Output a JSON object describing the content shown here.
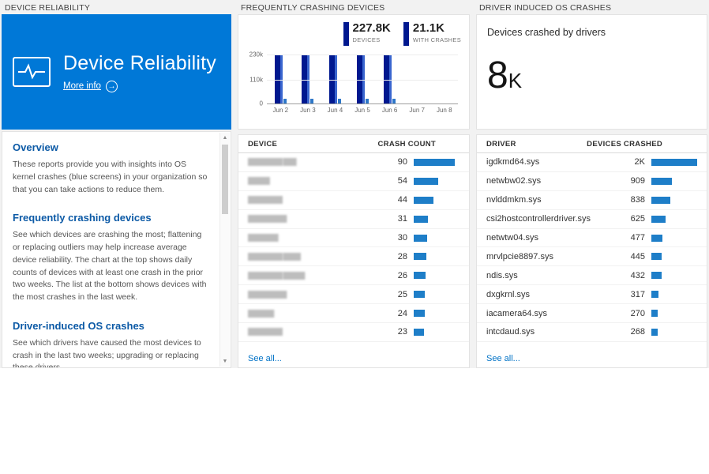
{
  "colors": {
    "tile_blue": "#0078d7",
    "chart_navy": "#00188f",
    "chart_blue": "#2e77c8",
    "table_bar_blue": "#1e7ec8",
    "heading_blue": "#0c5aa6",
    "link_blue": "#0072c6"
  },
  "reliability": {
    "header": "DEVICE RELIABILITY",
    "tile": {
      "title": "Device Reliability",
      "more_info": "More info"
    },
    "sections": [
      {
        "heading": "Overview",
        "body": "These reports provide you with insights into OS kernel crashes (blue screens) in your organization so that you can take actions to reduce them."
      },
      {
        "heading": "Frequently crashing devices",
        "body": "See which devices are crashing the most; flattening or replacing outliers may help increase average device reliability. The chart at the top shows daily counts of devices with at least one crash in the prior two weeks. The list at the bottom shows devices with the most crashes in the last week."
      },
      {
        "heading": "Driver-induced OS crashes",
        "body": "See which drivers have caused the most devices to crash in the last two weeks; upgrading or replacing these drivers"
      }
    ]
  },
  "crashing_devices": {
    "header": "FREQUENTLY CRASHING DEVICES",
    "table": {
      "columns": [
        "DEVICE",
        "CRASH COUNT"
      ],
      "rows": [
        {
          "name": "████████ ███",
          "redacted": true,
          "count": 90
        },
        {
          "name": "█████",
          "redacted": true,
          "count": 54
        },
        {
          "name": "████████",
          "redacted": true,
          "count": 44
        },
        {
          "name": "█████████",
          "redacted": true,
          "count": 31
        },
        {
          "name": "███████",
          "redacted": true,
          "count": 30
        },
        {
          "name": "████████ ████",
          "redacted": true,
          "count": 28
        },
        {
          "name": "████████ █████",
          "redacted": true,
          "count": 26
        },
        {
          "name": "█████████",
          "redacted": true,
          "count": 25
        },
        {
          "name": "██████",
          "redacted": true,
          "count": 24
        },
        {
          "name": "████████",
          "redacted": true,
          "count": 23
        }
      ],
      "see_all": "See all..."
    }
  },
  "driver_crashes": {
    "header": "DRIVER INDUCED OS CRASHES",
    "summary": {
      "caption": "Devices crashed by drivers",
      "value": "8",
      "suffix": "K"
    },
    "table": {
      "columns": [
        "DRIVER",
        "DEVICES CRASHED"
      ],
      "rows": [
        {
          "name": "igdkmd64.sys",
          "display": "2K",
          "value": 2000
        },
        {
          "name": "netwbw02.sys",
          "display": "909",
          "value": 909
        },
        {
          "name": "nvlddmkm.sys",
          "display": "838",
          "value": 838
        },
        {
          "name": "csi2hostcontrollerdriver.sys",
          "display": "625",
          "value": 625
        },
        {
          "name": "netwtw04.sys",
          "display": "477",
          "value": 477
        },
        {
          "name": "mrvlpcie8897.sys",
          "display": "445",
          "value": 445
        },
        {
          "name": "ndis.sys",
          "display": "432",
          "value": 432
        },
        {
          "name": "dxgkrnl.sys",
          "display": "317",
          "value": 317
        },
        {
          "name": "iacamera64.sys",
          "display": "270",
          "value": 270
        },
        {
          "name": "intcdaud.sys",
          "display": "268",
          "value": 268
        }
      ],
      "see_all": "See all..."
    }
  },
  "chart_data": {
    "type": "bar",
    "title": "FREQUENTLY CRASHING DEVICES",
    "categories": [
      "Jun 2",
      "Jun 3",
      "Jun 4",
      "Jun 5",
      "Jun 6",
      "Jun 7",
      "Jun 8"
    ],
    "series": [
      {
        "name": "DEVICES",
        "color": "#00188f",
        "values": [
          227800,
          227800,
          227800,
          227800,
          227800,
          null,
          null
        ]
      },
      {
        "name": "WITH CRASHES",
        "color": "#2e77c8",
        "values": [
          21100,
          21100,
          21100,
          21100,
          21100,
          null,
          null
        ]
      }
    ],
    "ylim": [
      0,
      230000
    ],
    "yticks": [
      {
        "label": "230k",
        "value": 230000
      },
      {
        "label": "110k",
        "value": 110000
      },
      {
        "label": "0",
        "value": 0
      }
    ],
    "legend": [
      {
        "value": "227.8K",
        "label": "DEVICES"
      },
      {
        "value": "21.1K",
        "label": "WITH CRASHES"
      }
    ],
    "legend_position": "top-right",
    "grid": true
  }
}
